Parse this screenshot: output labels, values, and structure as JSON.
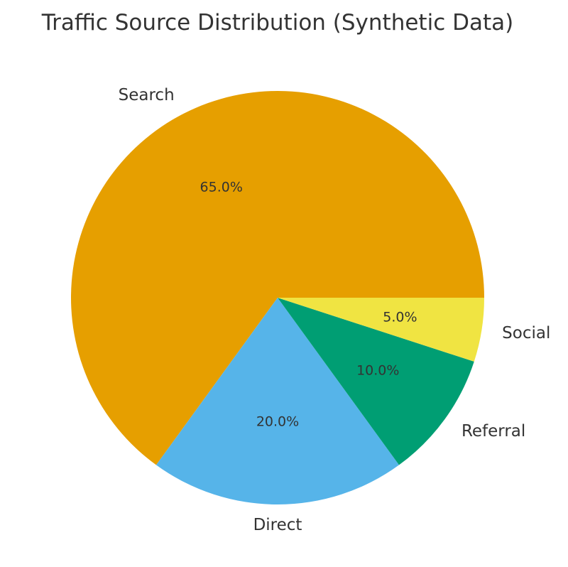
{
  "chart_data": {
    "type": "pie",
    "title": "Traffic Source Distribution (Synthetic Data)",
    "slices": [
      {
        "label": "Search",
        "value": 65.0,
        "pct_label": "65.0%",
        "color": "#E69F00"
      },
      {
        "label": "Direct",
        "value": 20.0,
        "pct_label": "20.0%",
        "color": "#56B4E9"
      },
      {
        "label": "Referral",
        "value": 10.0,
        "pct_label": "10.0%",
        "color": "#009E73"
      },
      {
        "label": "Social",
        "value": 5.0,
        "pct_label": "5.0%",
        "color": "#F0E442"
      }
    ],
    "start_angle_deg": 0,
    "direction": "counterclockwise",
    "legend": "none"
  }
}
